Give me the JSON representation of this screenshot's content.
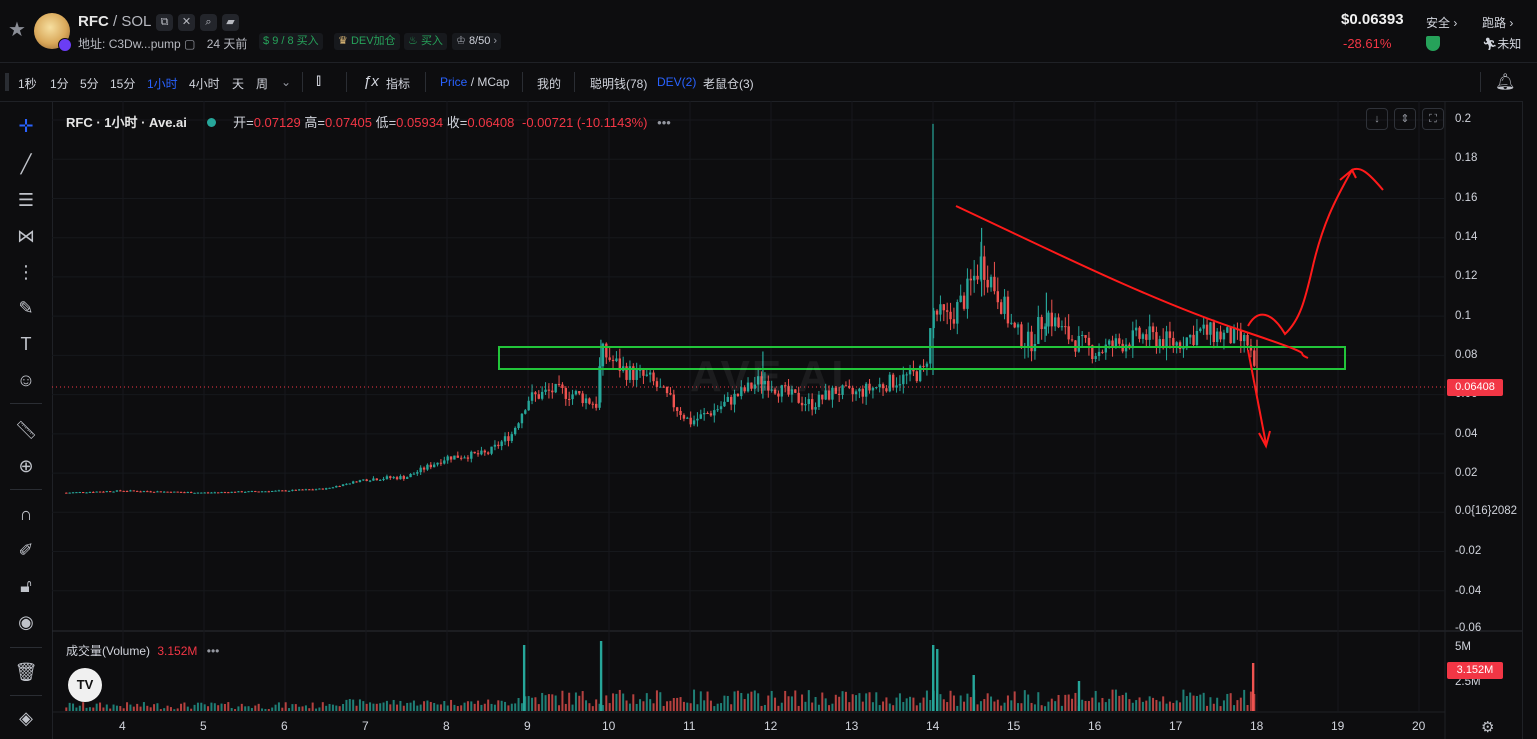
{
  "header": {
    "token": "RFC",
    "pair": "/ SOL",
    "address_label": "地址:",
    "address": "C3Dw...pump",
    "age": "24 天前",
    "buyers": "9 / 8",
    "buyers_label": "买入",
    "dev_tag": "DEV加仓",
    "buy2": "买入",
    "holders": "8/50",
    "price": "$0.06393",
    "change": "-28.61%",
    "safety_label": "安全",
    "run_label": "跑路",
    "run_value": "未知"
  },
  "toolbar": {
    "intervals": [
      "1秒",
      "1分",
      "5分",
      "15分",
      "1小时",
      "4小时",
      "天",
      "周"
    ],
    "active_interval": "1小时",
    "indicators_label": "指标",
    "price_label": "Price",
    "mcap_label": "/ MCap",
    "mine_label": "我的",
    "smart_money": "聪明钱(78)",
    "dev": "DEV(2)",
    "rats": "老鼠仓(3)"
  },
  "legend": {
    "title": "RFC · 1小时 · Ave.ai",
    "open_k": "开=",
    "open_v": "0.07129",
    "high_k": "高=",
    "high_v": "0.07405",
    "low_k": "低=",
    "low_v": "0.05934",
    "close_k": "收=",
    "close_v": "0.06408",
    "change_v": "-0.00721 (-10.1143%)"
  },
  "watermark": "AVE.AI",
  "y_axis": [
    "0.2",
    "0.18",
    "0.16",
    "0.14",
    "0.12",
    "0.1",
    "0.08",
    "0.06",
    "0.04",
    "0.02",
    "0.0{16}2082",
    "-0.02",
    "-0.04",
    "-0.06"
  ],
  "last_price_badge": "0.06408",
  "volume": {
    "label": "成交量(Volume)",
    "value": "3.152M",
    "axis": [
      "5M",
      "2.5M"
    ],
    "badge": "3.152M"
  },
  "x_axis": [
    "4",
    "5",
    "6",
    "7",
    "8",
    "9",
    "10",
    "11",
    "12",
    "13",
    "14",
    "15",
    "16",
    "17",
    "18",
    "19",
    "20"
  ],
  "colors": {
    "up": "#26a69a",
    "down": "#ef5350",
    "accent": "#2962ff",
    "box": "#22c53a",
    "drawing": "#ff1a1a"
  },
  "chart_data": {
    "type": "candlestick",
    "x_ticks": [
      "4",
      "5",
      "6",
      "7",
      "8",
      "9",
      "10",
      "11",
      "12",
      "13",
      "14",
      "15",
      "16",
      "17",
      "18",
      "19",
      "20"
    ],
    "y_range": [
      -0.06,
      0.2
    ],
    "price_path": [
      [
        3.3,
        0.01
      ],
      [
        4,
        0.011
      ],
      [
        5,
        0.01
      ],
      [
        6,
        0.011
      ],
      [
        6.5,
        0.012
      ],
      [
        7,
        0.017
      ],
      [
        7.5,
        0.018
      ],
      [
        8,
        0.028
      ],
      [
        8.5,
        0.03
      ],
      [
        8.8,
        0.04
      ],
      [
        9,
        0.058
      ],
      [
        9.3,
        0.062
      ],
      [
        9.6,
        0.06
      ],
      [
        9.85,
        0.055
      ],
      [
        9.9,
        0.082
      ],
      [
        10.2,
        0.072
      ],
      [
        10.5,
        0.068
      ],
      [
        10.8,
        0.055
      ],
      [
        11,
        0.046
      ],
      [
        11.3,
        0.052
      ],
      [
        11.6,
        0.06
      ],
      [
        11.9,
        0.068
      ],
      [
        12.2,
        0.06
      ],
      [
        12.5,
        0.055
      ],
      [
        12.8,
        0.062
      ],
      [
        13,
        0.06
      ],
      [
        13.3,
        0.064
      ],
      [
        13.6,
        0.068
      ],
      [
        13.9,
        0.072
      ],
      [
        14,
        0.102
      ],
      [
        14.2,
        0.098
      ],
      [
        14.4,
        0.11
      ],
      [
        14.6,
        0.128
      ],
      [
        14.8,
        0.112
      ],
      [
        15,
        0.092
      ],
      [
        15.2,
        0.086
      ],
      [
        15.4,
        0.102
      ],
      [
        15.6,
        0.092
      ],
      [
        15.8,
        0.086
      ],
      [
        16,
        0.082
      ],
      [
        16.3,
        0.086
      ],
      [
        16.6,
        0.09
      ],
      [
        17,
        0.086
      ],
      [
        17.3,
        0.092
      ],
      [
        17.6,
        0.09
      ],
      [
        17.9,
        0.086
      ],
      [
        18,
        0.064
      ]
    ],
    "last_close": 0.06408,
    "volume_range": [
      0,
      5.5
    ]
  }
}
